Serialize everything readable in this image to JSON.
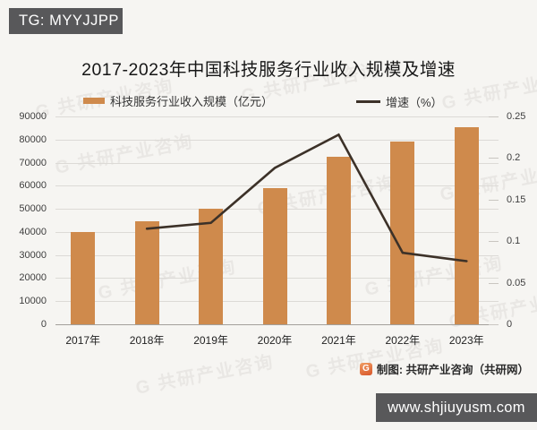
{
  "badges": {
    "telegram": "TG: MYYJJPP",
    "website": "www.shjiuyusm.com"
  },
  "chart": {
    "title": "2017-2023年中国科技服务行业收入规模及增速",
    "watermark_text": "G 共研产业咨询"
  },
  "footer": {
    "logo_letter": "G",
    "credit": "制图: 共研产业咨询（共研网）"
  },
  "colors": {
    "bar_orange": "#cf8a4c",
    "line_dark": "#3c3128",
    "badge_gray": "#58585a",
    "logo_orange": "#d8572b"
  },
  "chart_data": {
    "type": "bar",
    "title": "2017-2023年中国科技服务行业收入规模及增速",
    "categories": [
      "2017年",
      "2018年",
      "2019年",
      "2020年",
      "2021年",
      "2022年",
      "2023年"
    ],
    "series": [
      {
        "name": "科技服务行业收入规模（亿元）",
        "type": "bar",
        "axis": "left",
        "color": "#cf8a4c",
        "values": [
          39900,
          44500,
          50000,
          59100,
          72600,
          79000,
          85400
        ]
      },
      {
        "name": "增速（%）",
        "type": "line",
        "axis": "right",
        "color": "#3c3128",
        "values": [
          null,
          0.115,
          0.122,
          0.188,
          0.228,
          0.086,
          0.076
        ]
      }
    ],
    "left_axis": {
      "min": 0,
      "max": 90000,
      "step": 10000,
      "tick_labels": [
        "0",
        "10000",
        "20000",
        "30000",
        "40000",
        "50000",
        "60000",
        "70000",
        "80000",
        "90000"
      ]
    },
    "right_axis": {
      "min": 0,
      "max": 0.25,
      "step": 0.05,
      "tick_labels": [
        "0",
        "0.05",
        "0.1",
        "0.15",
        "0.2",
        "0.25"
      ]
    },
    "grid": true,
    "legend_position": "top"
  }
}
